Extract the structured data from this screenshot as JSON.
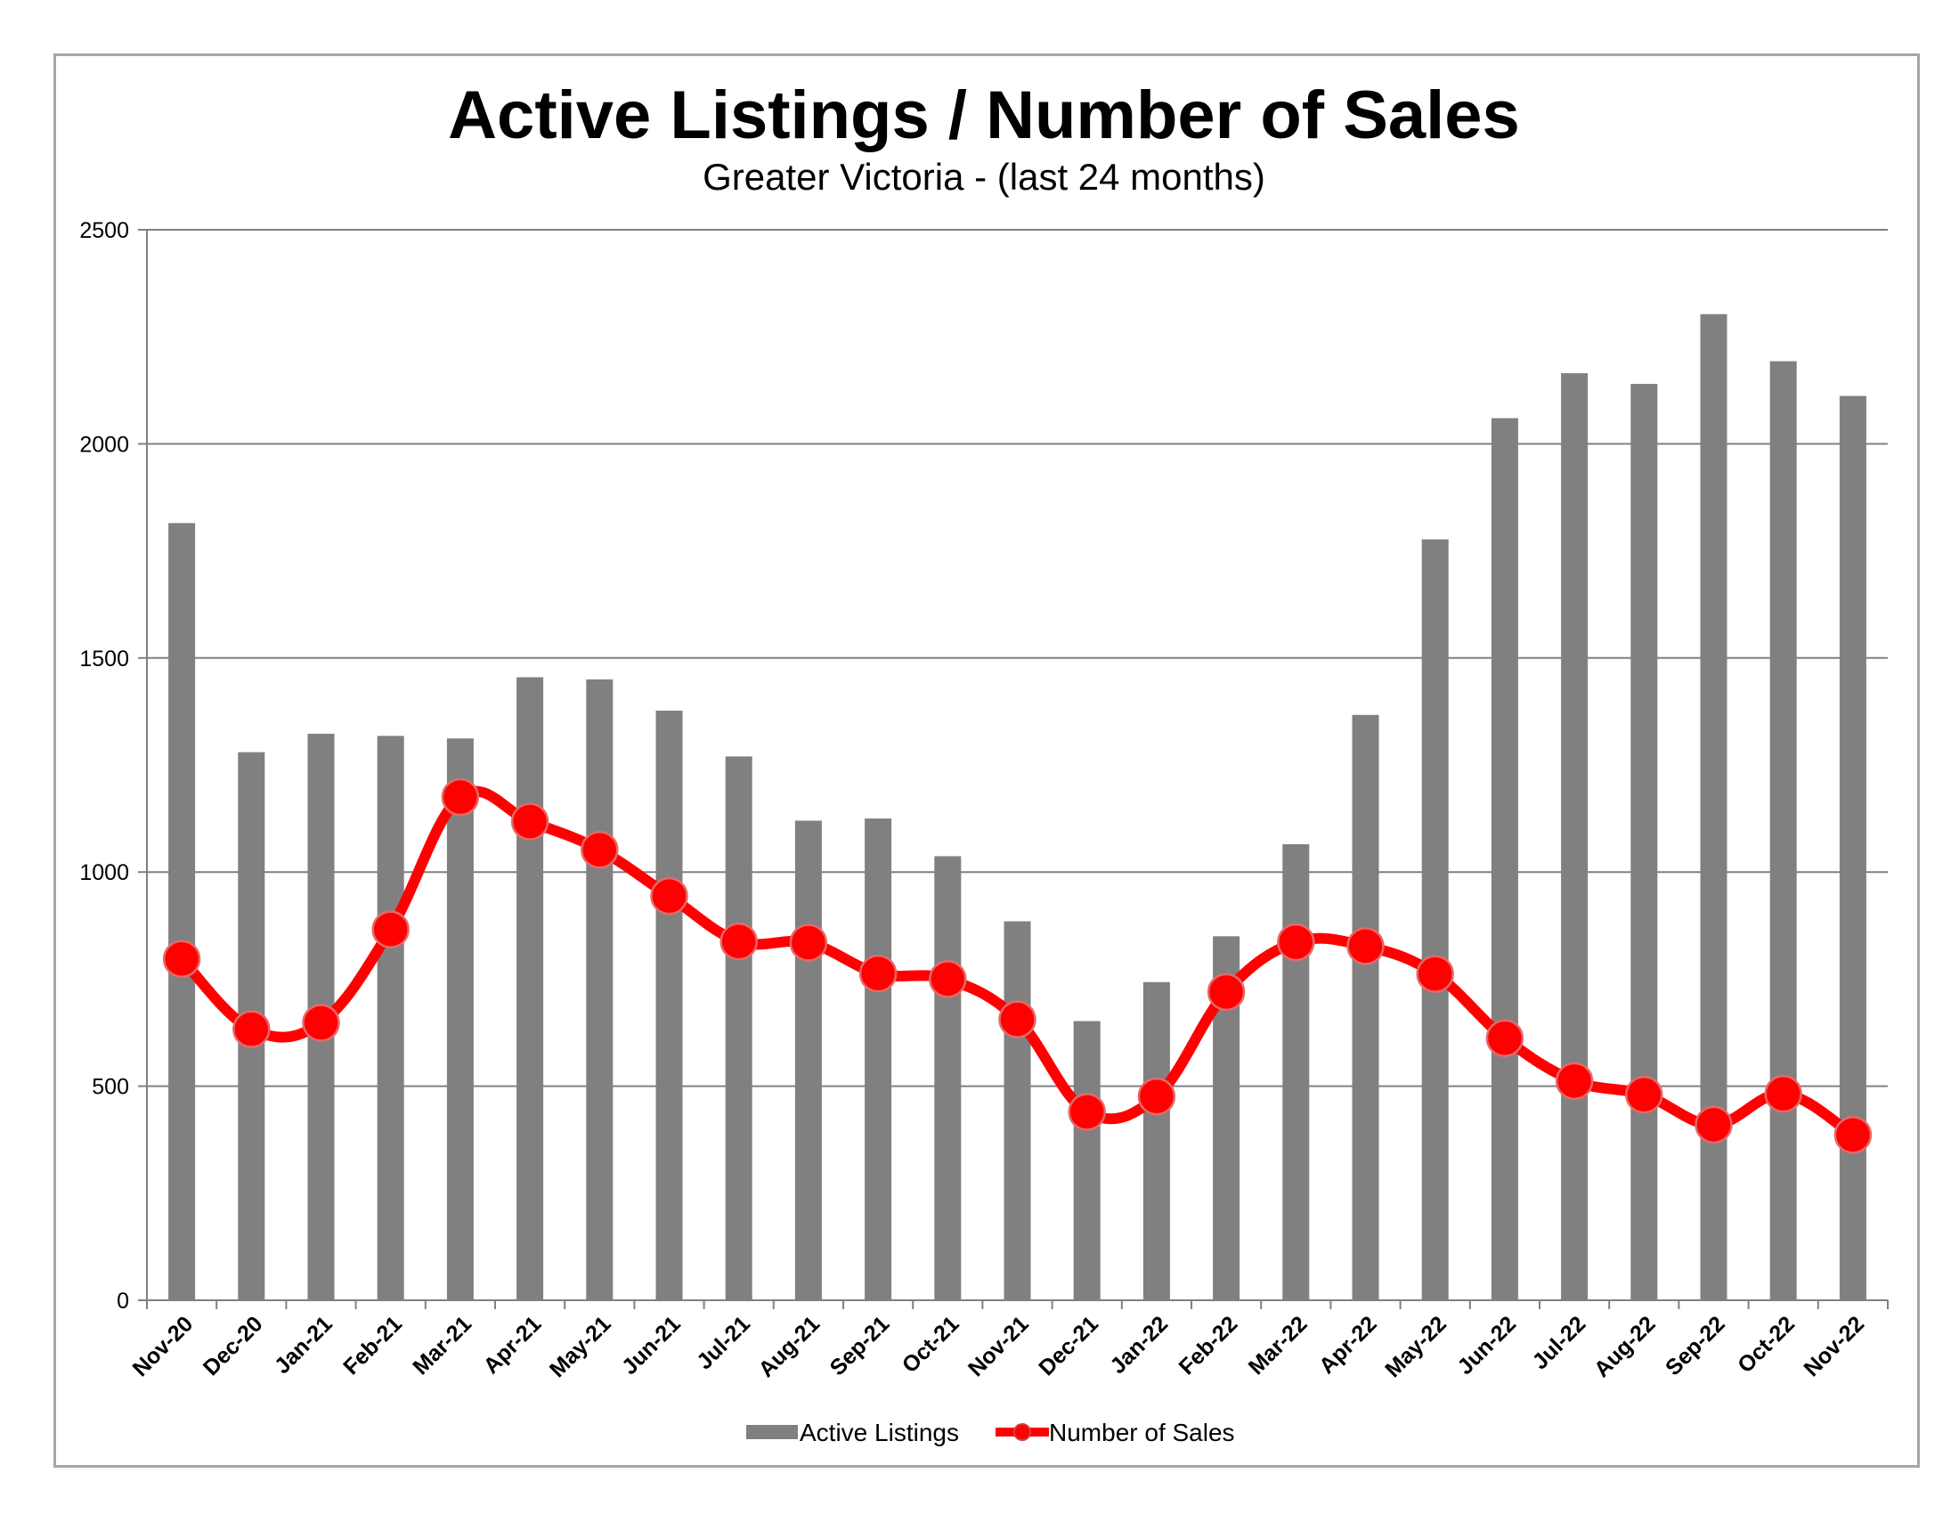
{
  "chart_data": {
    "type": "bar",
    "title": "Active Listings / Number of Sales",
    "subtitle": "Greater Victoria - (last 24 months)",
    "xlabel": "",
    "ylabel": "",
    "ylim": [
      0,
      2500
    ],
    "yticks": [
      "0",
      "500",
      "1000",
      "1500",
      "2000",
      "2500"
    ],
    "grid": true,
    "legend_position": "bottom",
    "categories": [
      "Nov-20",
      "Dec-20",
      "Jan-21",
      "Feb-21",
      "Mar-21",
      "Apr-21",
      "May-21",
      "Jun-21",
      "Jul-21",
      "Aug-21",
      "Sep-21",
      "Oct-21",
      "Nov-21",
      "Dec-21",
      "Jan-22",
      "Feb-22",
      "Mar-22",
      "Apr-22",
      "May-22",
      "Jun-22",
      "Jul-22",
      "Aug-22",
      "Sep-22",
      "Oct-22",
      "Nov-22"
    ],
    "series": [
      {
        "name": "Active Listings",
        "type": "bar",
        "color": "#808080",
        "values": [
          1815,
          1280,
          1323,
          1318,
          1312,
          1455,
          1450,
          1377,
          1270,
          1120,
          1125,
          1037,
          885,
          652,
          743,
          850,
          1065,
          1367,
          1777,
          2060,
          2165,
          2140,
          2303,
          2193,
          2112
        ]
      },
      {
        "name": "Number of Sales",
        "type": "line",
        "color": "#ff0000",
        "values": [
          797,
          633,
          648,
          866,
          1175,
          1118,
          1052,
          944,
          838,
          835,
          763,
          750,
          656,
          440,
          476,
          720,
          836,
          827,
          762,
          612,
          512,
          480,
          410,
          482,
          386
        ]
      }
    ]
  }
}
